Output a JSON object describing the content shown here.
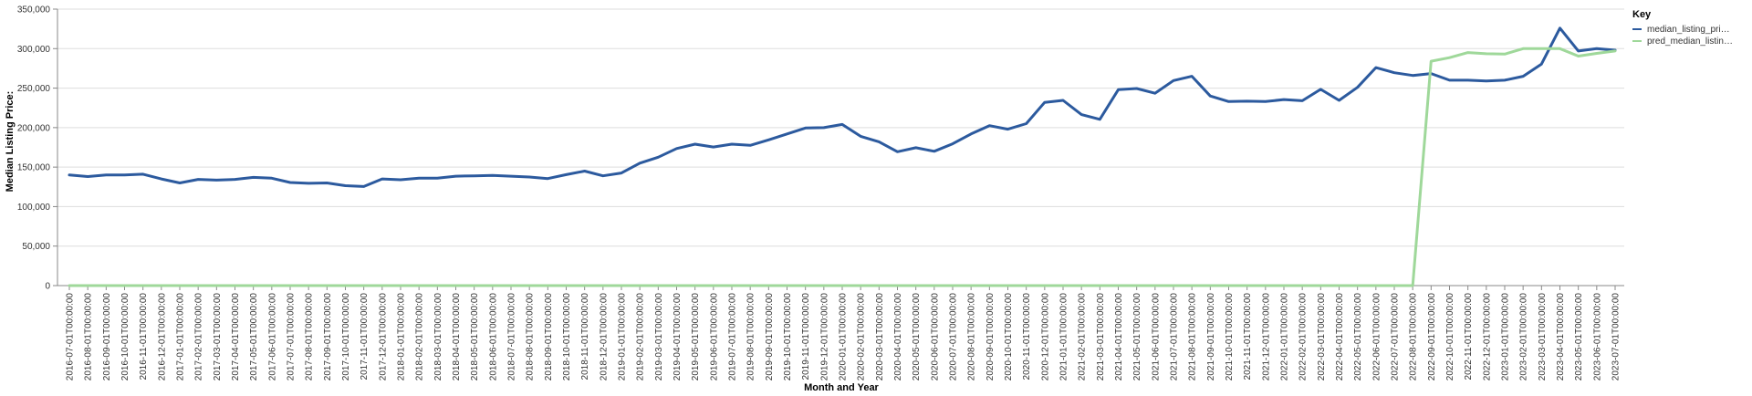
{
  "chart_data": {
    "type": "line",
    "xlabel": "Month and Year",
    "ylabel": "Median Listing Price:",
    "ylim": [
      0,
      350000
    ],
    "yticks": [
      0,
      50000,
      100000,
      150000,
      200000,
      250000,
      300000,
      350000
    ],
    "ytick_labels": [
      "0",
      "50,000",
      "100,000",
      "150,000",
      "200,000",
      "250,000",
      "300,000",
      "350,000"
    ],
    "grid": true,
    "legend": {
      "title": "Key",
      "position": "top-right",
      "entries": [
        {
          "label": "median_listing_pri…",
          "color": "#2c5a9e"
        },
        {
          "label": "pred_median_listin…",
          "color": "#9fd89a"
        }
      ]
    },
    "x": [
      "2016-07-01T00:00:00",
      "2016-08-01T00:00:00",
      "2016-09-01T00:00:00",
      "2016-10-01T00:00:00",
      "2016-11-01T00:00:00",
      "2016-12-01T00:00:00",
      "2017-01-01T00:00:00",
      "2017-02-01T00:00:00",
      "2017-03-01T00:00:00",
      "2017-04-01T00:00:00",
      "2017-05-01T00:00:00",
      "2017-06-01T00:00:00",
      "2017-07-01T00:00:00",
      "2017-08-01T00:00:00",
      "2017-09-01T00:00:00",
      "2017-10-01T00:00:00",
      "2017-11-01T00:00:00",
      "2017-12-01T00:00:00",
      "2018-01-01T00:00:00",
      "2018-02-01T00:00:00",
      "2018-03-01T00:00:00",
      "2018-04-01T00:00:00",
      "2018-05-01T00:00:00",
      "2018-06-01T00:00:00",
      "2018-07-01T00:00:00",
      "2018-08-01T00:00:00",
      "2018-09-01T00:00:00",
      "2018-10-01T00:00:00",
      "2018-11-01T00:00:00",
      "2018-12-01T00:00:00",
      "2019-01-01T00:00:00",
      "2019-02-01T00:00:00",
      "2019-03-01T00:00:00",
      "2019-04-01T00:00:00",
      "2019-05-01T00:00:00",
      "2019-06-01T00:00:00",
      "2019-07-01T00:00:00",
      "2019-08-01T00:00:00",
      "2019-09-01T00:00:00",
      "2019-10-01T00:00:00",
      "2019-11-01T00:00:00",
      "2019-12-01T00:00:00",
      "2020-01-01T00:00:00",
      "2020-02-01T00:00:00",
      "2020-03-01T00:00:00",
      "2020-04-01T00:00:00",
      "2020-05-01T00:00:00",
      "2020-06-01T00:00:00",
      "2020-07-01T00:00:00",
      "2020-08-01T00:00:00",
      "2020-09-01T00:00:00",
      "2020-10-01T00:00:00",
      "2020-11-01T00:00:00",
      "2020-12-01T00:00:00",
      "2021-01-01T00:00:00",
      "2021-02-01T00:00:00",
      "2021-03-01T00:00:00",
      "2021-04-01T00:00:00",
      "2021-05-01T00:00:00",
      "2021-06-01T00:00:00",
      "2021-07-01T00:00:00",
      "2021-08-01T00:00:00",
      "2021-09-01T00:00:00",
      "2021-10-01T00:00:00",
      "2021-11-01T00:00:00",
      "2021-12-01T00:00:00",
      "2022-01-01T00:00:00",
      "2022-02-01T00:00:00",
      "2022-03-01T00:00:00",
      "2022-04-01T00:00:00",
      "2022-05-01T00:00:00",
      "2022-06-01T00:00:00",
      "2022-07-01T00:00:00",
      "2022-08-01T00:00:00",
      "2022-09-01T00:00:00",
      "2022-10-01T00:00:00",
      "2022-11-01T00:00:00",
      "2022-12-01T00:00:00",
      "2023-01-01T00:00:00",
      "2023-02-01T00:00:00",
      "2023-03-01T00:00:00",
      "2023-04-01T00:00:00",
      "2023-05-01T00:00:00",
      "2023-06-01T00:00:00",
      "2023-07-01T00:00:00"
    ],
    "series": [
      {
        "name": "median_listing_pri…",
        "color": "#2c5a9e",
        "values": [
          140000,
          138000,
          140000,
          140000,
          141000,
          135000,
          130000,
          134500,
          133500,
          134500,
          137000,
          136000,
          130500,
          129500,
          130000,
          126500,
          125500,
          135000,
          134000,
          136000,
          136000,
          138500,
          139000,
          139500,
          138500,
          137500,
          135500,
          140500,
          145000,
          139000,
          142500,
          155000,
          162500,
          173500,
          179000,
          175500,
          179000,
          177500,
          184500,
          192000,
          199500,
          200000,
          204000,
          189000,
          182000,
          169500,
          174500,
          170000,
          179500,
          192000,
          202500,
          198000,
          205000,
          232000,
          234500,
          216500,
          210500,
          248000,
          249500,
          243500,
          259500,
          265000,
          240000,
          233000,
          233500,
          233000,
          235500,
          234000,
          248500,
          234500,
          251000,
          276000,
          269500,
          266000,
          268500,
          260000,
          260000,
          259000,
          260000,
          265000,
          280500,
          326000,
          297000,
          300000,
          298000
        ]
      },
      {
        "name": "pred_median_listin…",
        "color": "#9fd89a",
        "values": [
          0,
          0,
          0,
          0,
          0,
          0,
          0,
          0,
          0,
          0,
          0,
          0,
          0,
          0,
          0,
          0,
          0,
          0,
          0,
          0,
          0,
          0,
          0,
          0,
          0,
          0,
          0,
          0,
          0,
          0,
          0,
          0,
          0,
          0,
          0,
          0,
          0,
          0,
          0,
          0,
          0,
          0,
          0,
          0,
          0,
          0,
          0,
          0,
          0,
          0,
          0,
          0,
          0,
          0,
          0,
          0,
          0,
          0,
          0,
          0,
          0,
          0,
          0,
          0,
          0,
          0,
          0,
          0,
          0,
          0,
          0,
          0,
          0,
          0,
          284000,
          288500,
          295000,
          293500,
          293000,
          300000,
          300000,
          300000,
          290500,
          294000,
          297000
        ]
      }
    ]
  }
}
